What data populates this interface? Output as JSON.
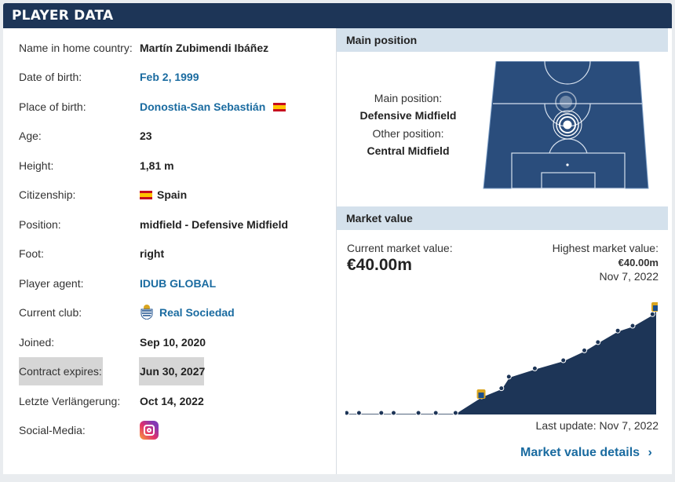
{
  "header": {
    "title": "PLAYER DATA"
  },
  "player": {
    "rows": [
      {
        "label": "Name in home country:",
        "value": "Martín Zubimendi Ibáñez"
      },
      {
        "label": "Date of birth:",
        "value": "Feb 2, 1999"
      },
      {
        "label": "Place of birth:",
        "value": "Donostia-San Sebastián"
      },
      {
        "label": "Age:",
        "value": "23"
      },
      {
        "label": "Height:",
        "value": "1,81 m"
      },
      {
        "label": "Citizenship:",
        "value": "Spain"
      },
      {
        "label": "Position:",
        "value": "midfield - Defensive Midfield"
      },
      {
        "label": "Foot:",
        "value": "right"
      },
      {
        "label": "Player agent:",
        "value": "IDUB GLOBAL"
      },
      {
        "label": "Current club:",
        "value": "Real Sociedad"
      },
      {
        "label": "Joined:",
        "value": "Sep 10, 2020"
      },
      {
        "label": "Contract expires:",
        "value": "Jun 30, 2027"
      },
      {
        "label": "Letzte Verlängerung:",
        "value": "Oct 14, 2022"
      },
      {
        "label": "Social-Media:",
        "value": ""
      }
    ]
  },
  "position": {
    "heading": "Main position",
    "main_label": "Main position:",
    "main_value": "Defensive Midfield",
    "other_label": "Other position:",
    "other_value": "Central Midfield"
  },
  "market": {
    "heading": "Market value",
    "current_label": "Current market value:",
    "current_value": "€40.00m",
    "highest_label": "Highest market value:",
    "highest_value": "€40.00m",
    "highest_date": "Nov 7, 2022",
    "last_update": "Last update: Nov 7, 2022",
    "details_link": "Market value details",
    "accent": "#1d3557"
  },
  "chart_data": {
    "type": "area",
    "values": [
      0,
      0,
      0,
      0,
      0,
      0,
      0,
      10,
      15,
      22,
      27,
      32,
      38,
      43,
      50,
      53,
      60,
      63
    ]
  },
  "icons": {
    "flag": "spain-flag-icon",
    "club": "real-sociedad-crest-icon",
    "social": "instagram-icon",
    "link": "chevron-right-icon"
  }
}
